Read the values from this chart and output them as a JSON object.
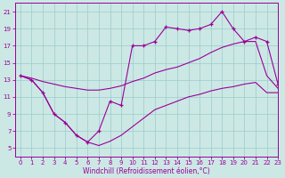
{
  "xlabel": "Windchill (Refroidissement éolien,°C)",
  "bg_color": "#cce8e4",
  "line_color": "#990099",
  "grid_color": "#99cccc",
  "xlim": [
    -0.5,
    23
  ],
  "ylim": [
    4,
    22
  ],
  "xticks": [
    0,
    1,
    2,
    3,
    4,
    5,
    6,
    7,
    8,
    9,
    10,
    11,
    12,
    13,
    14,
    15,
    16,
    17,
    18,
    19,
    20,
    21,
    22,
    23
  ],
  "yticks": [
    5,
    7,
    9,
    11,
    13,
    15,
    17,
    19,
    21
  ],
  "line_jagged_x": [
    0,
    1,
    2,
    3,
    4,
    5,
    6,
    7,
    8,
    9,
    10,
    11,
    12,
    13,
    14,
    15,
    16,
    17,
    18,
    19,
    20,
    21,
    22,
    23
  ],
  "line_jagged_y": [
    13.5,
    13.0,
    11.5,
    9.0,
    8.0,
    6.5,
    5.7,
    7.0,
    10.5,
    10.0,
    17.0,
    17.0,
    17.5,
    19.2,
    19.0,
    18.8,
    19.0,
    19.5,
    21.0,
    19.0,
    17.5,
    18.0,
    17.5,
    12.5
  ],
  "line_mid_x": [
    0,
    1,
    2,
    3,
    4,
    5,
    6,
    7,
    8,
    9,
    10,
    11,
    12,
    13,
    14,
    15,
    16,
    17,
    18,
    19,
    20,
    21,
    22,
    23
  ],
  "line_mid_y": [
    13.5,
    13.2,
    12.8,
    12.5,
    12.2,
    12.0,
    11.8,
    11.8,
    12.0,
    12.3,
    12.8,
    13.2,
    13.8,
    14.2,
    14.5,
    15.0,
    15.5,
    16.2,
    16.8,
    17.2,
    17.5,
    17.5,
    13.5,
    12.0
  ],
  "line_low_x": [
    0,
    1,
    2,
    3,
    4,
    5,
    6,
    7,
    8,
    9,
    10,
    11,
    12,
    13,
    14,
    15,
    16,
    17,
    18,
    19,
    20,
    21,
    22,
    23
  ],
  "line_low_y": [
    13.5,
    13.0,
    11.5,
    9.0,
    8.0,
    6.5,
    5.7,
    5.3,
    5.8,
    6.5,
    7.5,
    8.5,
    9.5,
    10.0,
    10.5,
    11.0,
    11.3,
    11.7,
    12.0,
    12.2,
    12.5,
    12.7,
    11.5,
    11.5
  ]
}
